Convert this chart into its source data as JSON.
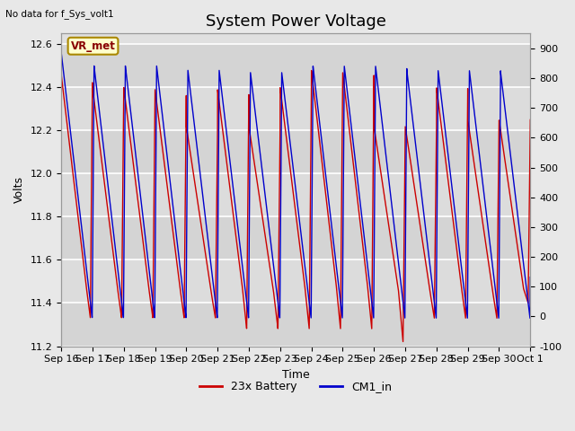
{
  "title": "System Power Voltage",
  "top_left_text": "No data for f_Sys_volt1",
  "ylabel_left": "Volts",
  "xlabel": "Time",
  "annotation_label": "VR_met",
  "ylim_left": [
    11.2,
    12.65
  ],
  "ylim_right": [
    -100,
    950
  ],
  "yticks_left": [
    11.2,
    11.4,
    11.6,
    11.8,
    12.0,
    12.2,
    12.4,
    12.6
  ],
  "yticks_right": [
    -100,
    0,
    100,
    200,
    300,
    400,
    500,
    600,
    700,
    800,
    900
  ],
  "xtick_labels": [
    "Sep 16",
    "Sep 17",
    "Sep 18",
    "Sep 19",
    "Sep 20",
    "Sep 21",
    "Sep 22",
    "Sep 23",
    "Sep 24",
    "Sep 25",
    "Sep 26",
    "Sep 27",
    "Sep 28",
    "Sep 29",
    "Sep 30",
    "Oct 1"
  ],
  "color_red": "#cc0000",
  "color_blue": "#0000cc",
  "legend_labels": [
    "23x Battery",
    "CM1_in"
  ],
  "background_color": "#e8e8e8",
  "plot_bg_color": "#e0e0e0",
  "grid_color": "#ffffff",
  "annotation_bg": "#ffffcc",
  "annotation_border": "#aa8800",
  "n_days": 15,
  "title_fontsize": 13,
  "label_fontsize": 9,
  "tick_fontsize": 8
}
